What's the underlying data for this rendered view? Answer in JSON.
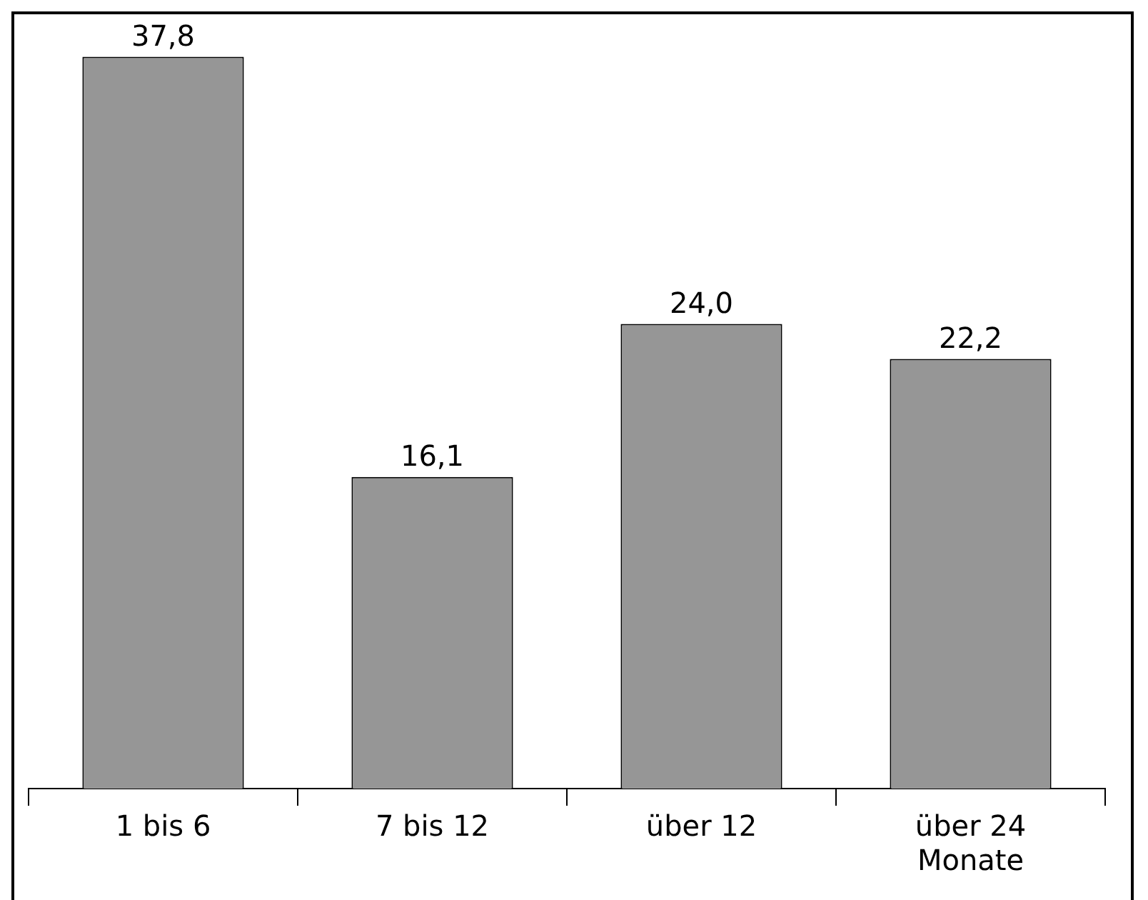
{
  "chart_data": {
    "type": "bar",
    "categories": [
      "1 bis 6",
      "7 bis 12",
      "über 12",
      "über 24 Monate"
    ],
    "values": [
      37.8,
      16.1,
      24.0,
      22.2
    ],
    "value_labels": [
      "37,8",
      "16,1",
      "24,0",
      "22,2"
    ],
    "color": "#969696",
    "grid": false,
    "legend": false
  }
}
